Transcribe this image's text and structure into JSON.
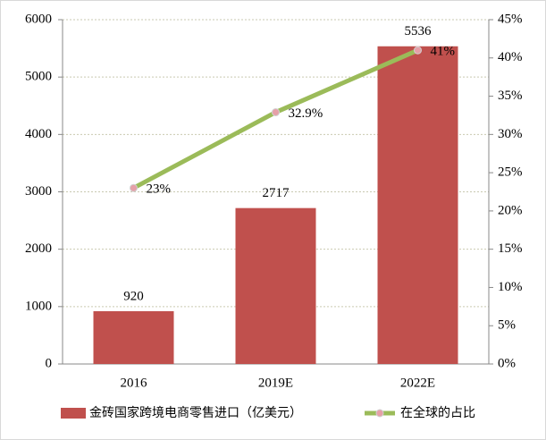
{
  "chart_data": {
    "type": "bar",
    "categories": [
      "2016",
      "2019E",
      "2022E"
    ],
    "series": [
      {
        "name": "金砖国家跨境电商零售进口（亿美元）",
        "color": "#c0504d",
        "values": [
          920,
          2717,
          5536
        ]
      },
      {
        "name": "在全球的占比",
        "type": "line",
        "axis": "y2",
        "color": "#9bbb59",
        "marker_color": "#e6a0a8",
        "values": [
          23,
          32.9,
          41
        ],
        "value_labels": [
          "23%",
          "32.9%",
          "41%"
        ]
      }
    ],
    "ylim": [
      0,
      6000
    ],
    "yticks": [
      0,
      1000,
      2000,
      3000,
      4000,
      5000,
      6000
    ],
    "y2lim": [
      0,
      45
    ],
    "y2ticks": [
      {
        "value": 0,
        "label": "0%"
      },
      {
        "value": 5,
        "label": "5%"
      },
      {
        "value": 10,
        "label": "10%"
      },
      {
        "value": 15,
        "label": "15%"
      },
      {
        "value": 20,
        "label": "20%"
      },
      {
        "value": 25,
        "label": "25%"
      },
      {
        "value": 30,
        "label": "30%"
      },
      {
        "value": 35,
        "label": "35%"
      },
      {
        "value": 40,
        "label": "40%"
      },
      {
        "value": 45,
        "label": "45%"
      }
    ],
    "grid": true,
    "legend": "bottom"
  }
}
